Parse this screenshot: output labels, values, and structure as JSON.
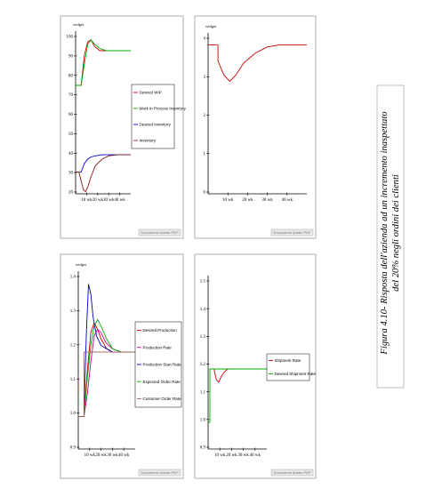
{
  "caption": {
    "line1": "Figura 4.10- Risposta dell'azienda ad un incremento inaspettato",
    "line2": "del 20% negli ordini dei clienti"
  },
  "chart_data": [
    {
      "id": "p1",
      "type": "line",
      "ylabel": "widget",
      "ylim": [
        30,
        105
      ],
      "yticks": [
        "100",
        "90",
        "80",
        "70",
        "60",
        "50",
        "40",
        "30",
        "20"
      ],
      "xlim": [
        0,
        50
      ],
      "xticks": [
        "10 wk",
        "20 wk",
        "30 wk",
        "40 wk"
      ],
      "watermark": "Documento Adobe PDF",
      "legend": [
        "Desired WIP",
        "Work in Process Inventory",
        "Desired Inventory",
        "Inventory"
      ],
      "series": [
        {
          "name": "Desired WIP",
          "color": "#cc0000",
          "x": [
            0,
            3,
            5,
            8,
            11,
            14,
            17,
            22,
            28,
            35,
            42,
            50
          ],
          "y": [
            80,
            80,
            80,
            94,
            100,
            101,
            98,
            96,
            96,
            96,
            96,
            96
          ]
        },
        {
          "name": "Work in Process Inventory",
          "color": "#00aa00",
          "x": [
            0,
            3,
            5,
            8,
            11,
            14,
            17,
            22,
            28,
            35,
            42,
            50
          ],
          "y": [
            80,
            80,
            80,
            90,
            99,
            101,
            99,
            97,
            96,
            96,
            96,
            96
          ]
        },
        {
          "name": "Desired Inventory",
          "color": "#0000cc",
          "x": [
            0,
            3,
            5,
            8,
            11,
            14,
            18,
            24,
            30,
            38,
            45,
            50
          ],
          "y": [
            40,
            40,
            40,
            44,
            46,
            47,
            47.5,
            48,
            48,
            48,
            48,
            48
          ]
        },
        {
          "name": "Inventory",
          "color": "#8b1a1a",
          "x": [
            0,
            3,
            5,
            7,
            9,
            11,
            14,
            18,
            24,
            30,
            38,
            45,
            50
          ],
          "y": [
            40,
            40,
            36,
            32,
            31,
            33,
            38,
            43,
            46,
            47.5,
            48,
            48,
            48
          ]
        }
      ]
    },
    {
      "id": "p2",
      "type": "line",
      "ylabel": "widget",
      "ylim": [
        0,
        4
      ],
      "yticks": [
        "4",
        "3",
        "2",
        "1",
        "0"
      ],
      "xlim": [
        0,
        50
      ],
      "xticks": [
        "10 wk",
        "20 wk",
        "30 wk",
        "40 wk"
      ],
      "watermark": "Documento Adobe PDF",
      "legend": [],
      "series": [
        {
          "name": "",
          "color": "#cc0000",
          "x": [
            0,
            5,
            5,
            8,
            11,
            14,
            18,
            24,
            30,
            36,
            42,
            50
          ],
          "y": [
            3.7,
            3.7,
            3.3,
            2.95,
            2.8,
            2.95,
            3.25,
            3.5,
            3.65,
            3.7,
            3.7,
            3.7
          ]
        }
      ]
    },
    {
      "id": "p3",
      "type": "line",
      "ylabel": "widget",
      "ylim": [
        0.9,
        1.45
      ],
      "yticks": [
        "1.4",
        "1.3",
        "1.2",
        "1.1",
        "1.0",
        "0.9"
      ],
      "xlim": [
        0,
        50
      ],
      "xticks": [
        "10 wk",
        "20 wk",
        "30 wk",
        "40 wk"
      ],
      "watermark": "Documento Adobe PDF",
      "legend": [
        "Desired Production",
        "Production Rate",
        "Production Start Rate",
        "Expected Order Rate",
        "Customer Order Rate"
      ],
      "series": [
        {
          "name": "Desired Production",
          "color": "#cc0000",
          "x": [
            0,
            5,
            8,
            11,
            14,
            17,
            20,
            25,
            30,
            38,
            50
          ],
          "y": [
            1.0,
            1.0,
            1.14,
            1.26,
            1.29,
            1.27,
            1.24,
            1.21,
            1.2,
            1.2,
            1.2
          ]
        },
        {
          "name": "Production Rate",
          "color": "#cc0088",
          "x": [
            0,
            5,
            8,
            11,
            14,
            17,
            20,
            24,
            30,
            38,
            50
          ],
          "y": [
            1.0,
            1.0,
            1.07,
            1.17,
            1.25,
            1.27,
            1.26,
            1.23,
            1.21,
            1.2,
            1.2
          ]
        },
        {
          "name": "Production Start Rate",
          "color": "#0000cc",
          "x": [
            0,
            5,
            7,
            9,
            11,
            13,
            16,
            20,
            25,
            30,
            38,
            50
          ],
          "y": [
            1.0,
            1.0,
            1.25,
            1.41,
            1.38,
            1.31,
            1.25,
            1.22,
            1.21,
            1.2,
            1.2,
            1.2
          ]
        },
        {
          "name": "Expected Order Rate",
          "color": "#00aa00",
          "x": [
            0,
            5,
            8,
            11,
            14,
            17,
            20,
            25,
            30,
            38,
            50
          ],
          "y": [
            1.0,
            1.0,
            1.12,
            1.22,
            1.28,
            1.3,
            1.28,
            1.24,
            1.21,
            1.2,
            1.2
          ]
        },
        {
          "name": "Customer Order Rate",
          "color": "#aa5555",
          "x": [
            0,
            5,
            5,
            50
          ],
          "y": [
            1.0,
            1.0,
            1.2,
            1.2
          ]
        }
      ]
    },
    {
      "id": "p4",
      "type": "line",
      "ylabel": "",
      "ylim": [
        0.9,
        1.55
      ],
      "yticks": [
        "1.5",
        "1.4",
        "1.3",
        "1.2",
        "1.1",
        "1.0",
        "0.9"
      ],
      "xlim": [
        0,
        50
      ],
      "xticks": [
        "10 wk",
        "20 wk",
        "30 wk",
        "40 wk"
      ],
      "watermark": "Documento Adobe PDF",
      "legend": [
        "Shipment Rate",
        "Desired Shipment Rate"
      ],
      "series": [
        {
          "name": "Shipment Rate",
          "color": "#cc0000",
          "x": [
            3,
            5,
            7,
            9,
            11,
            14,
            17,
            22,
            50
          ],
          "y": [
            1.2,
            1.2,
            1.16,
            1.15,
            1.17,
            1.19,
            1.2,
            1.2,
            1.2
          ]
        },
        {
          "name": "Desired Shipment Rate",
          "color": "#00aa00",
          "x": [
            0,
            1.5,
            1.5,
            50
          ],
          "y": [
            1.0,
            1.0,
            1.2,
            1.2
          ]
        }
      ]
    }
  ]
}
